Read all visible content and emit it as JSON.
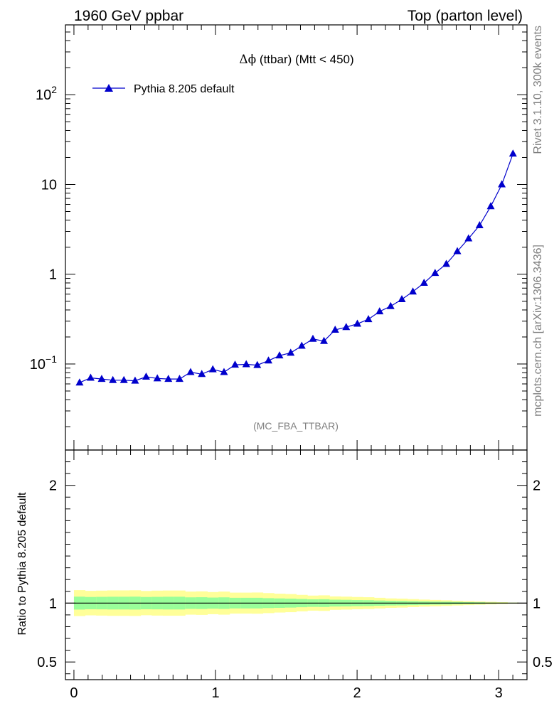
{
  "header": {
    "left_title": "1960 GeV ppbar",
    "right_title": "Top (parton level)"
  },
  "side_labels": {
    "top": "Rivet 3.1.10,  300k events",
    "bottom": "mcplots.cern.ch [arXiv:1306.3436]"
  },
  "colors": {
    "series": "#0000cc",
    "band_inner": "#99ff99",
    "band_outer": "#ffff99"
  },
  "chart_data": [
    {
      "type": "line",
      "title": "Δϕ (ttbar) (Mtt < 450)",
      "title_parts": {
        "symbol": "Δϕ",
        "text": " (ttbar) (Mtt < 450)"
      },
      "analysis_tag": "(MC_FBA_TTBAR)",
      "yscale": "log",
      "xlim": [
        -0.06,
        3.2
      ],
      "ylim": [
        0.011,
        600
      ],
      "ytick_labels": [
        {
          "value": 0.1,
          "base": "10",
          "exp": "−1"
        },
        {
          "value": 1,
          "text": "1"
        },
        {
          "value": 10,
          "text": "10"
        },
        {
          "value": 100,
          "base": "10",
          "exp": "2"
        }
      ],
      "legend": {
        "position": "top-left",
        "entries": [
          "Pythia 8.205 default"
        ]
      },
      "series": [
        {
          "name": "Pythia 8.205 default",
          "marker": "triangle",
          "x": [
            0.04,
            0.118,
            0.196,
            0.275,
            0.353,
            0.432,
            0.51,
            0.589,
            0.667,
            0.746,
            0.824,
            0.903,
            0.981,
            1.06,
            1.138,
            1.217,
            1.295,
            1.374,
            1.452,
            1.531,
            1.609,
            1.688,
            1.766,
            1.845,
            1.923,
            2.002,
            2.08,
            2.159,
            2.237,
            2.316,
            2.394,
            2.473,
            2.551,
            2.63,
            2.708,
            2.787,
            2.865,
            2.944,
            3.022,
            3.101
          ],
          "values": [
            0.062,
            0.07,
            0.068,
            0.066,
            0.066,
            0.065,
            0.072,
            0.069,
            0.068,
            0.068,
            0.081,
            0.077,
            0.087,
            0.081,
            0.098,
            0.099,
            0.097,
            0.109,
            0.124,
            0.133,
            0.159,
            0.19,
            0.18,
            0.24,
            0.257,
            0.28,
            0.315,
            0.385,
            0.44,
            0.525,
            0.64,
            0.8,
            1.03,
            1.3,
            1.8,
            2.5,
            3.5,
            5.7,
            10.0,
            22.0
          ]
        }
      ]
    },
    {
      "type": "area",
      "ylabel": "Ratio to Pythia 8.205 default",
      "xlim": [
        -0.06,
        3.2
      ],
      "ylim": [
        0.35,
        2.3
      ],
      "x_ticks": [
        0,
        1,
        2,
        3
      ],
      "y_ticks": [
        0.5,
        1,
        2
      ],
      "x_tick_labels": [
        "0",
        "1",
        "2",
        "3"
      ],
      "y_tick_labels": [
        "0.5",
        "1",
        "2"
      ],
      "reference_line": 1,
      "bin_edges": [
        0.0,
        0.0785,
        0.157,
        0.2355,
        0.314,
        0.3925,
        0.471,
        0.5495,
        0.628,
        0.7065,
        0.785,
        0.8635,
        0.942,
        1.0205,
        1.099,
        1.1775,
        1.256,
        1.3345,
        1.413,
        1.4915,
        1.57,
        1.6485,
        1.727,
        1.8055,
        1.884,
        1.9625,
        2.041,
        2.1195,
        2.198,
        2.2765,
        2.355,
        2.4335,
        2.512,
        2.5905,
        2.669,
        2.7475,
        2.826,
        2.9045,
        2.983,
        3.0615,
        3.14
      ],
      "inner_band_halfwidth": [
        0.055,
        0.052,
        0.053,
        0.054,
        0.054,
        0.055,
        0.052,
        0.053,
        0.054,
        0.054,
        0.049,
        0.05,
        0.047,
        0.049,
        0.045,
        0.045,
        0.045,
        0.042,
        0.04,
        0.038,
        0.035,
        0.032,
        0.033,
        0.029,
        0.028,
        0.026,
        0.025,
        0.022,
        0.02,
        0.019,
        0.017,
        0.015,
        0.013,
        0.012,
        0.01,
        0.008,
        0.007,
        0.005,
        0.004,
        0.003
      ],
      "outer_band_halfwidth": [
        0.11,
        0.104,
        0.106,
        0.108,
        0.108,
        0.109,
        0.103,
        0.106,
        0.107,
        0.107,
        0.098,
        0.1,
        0.094,
        0.098,
        0.089,
        0.089,
        0.09,
        0.085,
        0.08,
        0.077,
        0.07,
        0.064,
        0.066,
        0.057,
        0.055,
        0.052,
        0.05,
        0.045,
        0.04,
        0.038,
        0.034,
        0.03,
        0.027,
        0.024,
        0.02,
        0.017,
        0.014,
        0.011,
        0.008,
        0.005
      ]
    }
  ]
}
